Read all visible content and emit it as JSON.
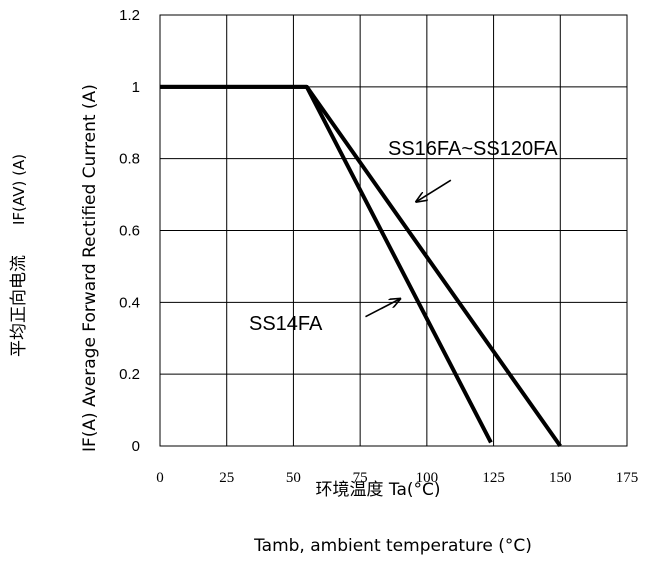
{
  "chart_data": {
    "type": "line",
    "xlabel": "环境温度 Ta(°C)",
    "xlabel2": "Tamb, ambient temperature (°C)",
    "ylabel_cn": "平均正向电流",
    "ylabel_sym": "IF(AV) (A)",
    "ylabel_en": "IF(A)  Average Forward Rectified Current (A)",
    "x_ticks": [
      "0",
      "25",
      "50",
      "75",
      "100",
      "125",
      "150",
      "175"
    ],
    "y_ticks": [
      "0",
      "0.2",
      "0.4",
      "0.6",
      "0.8",
      "1",
      "1.2"
    ],
    "xlim": [
      0,
      175
    ],
    "ylim": [
      0,
      1.2
    ],
    "grid": true,
    "series": [
      {
        "name": "SS14FA",
        "x": [
          0,
          55,
          124
        ],
        "y": [
          1,
          1,
          0.01
        ]
      },
      {
        "name": "SS16FA~SS120FA",
        "x": [
          0,
          55,
          150
        ],
        "y": [
          1,
          1,
          0
        ]
      }
    ],
    "annotations": [
      {
        "text": "SS16FA~SS120FA",
        "arrow_from": [
          109,
          0.74
        ],
        "arrow_to": [
          96,
          0.68
        ]
      },
      {
        "text": "SS14FA",
        "arrow_from": [
          77,
          0.36
        ],
        "arrow_to": [
          90,
          0.41
        ]
      }
    ]
  }
}
